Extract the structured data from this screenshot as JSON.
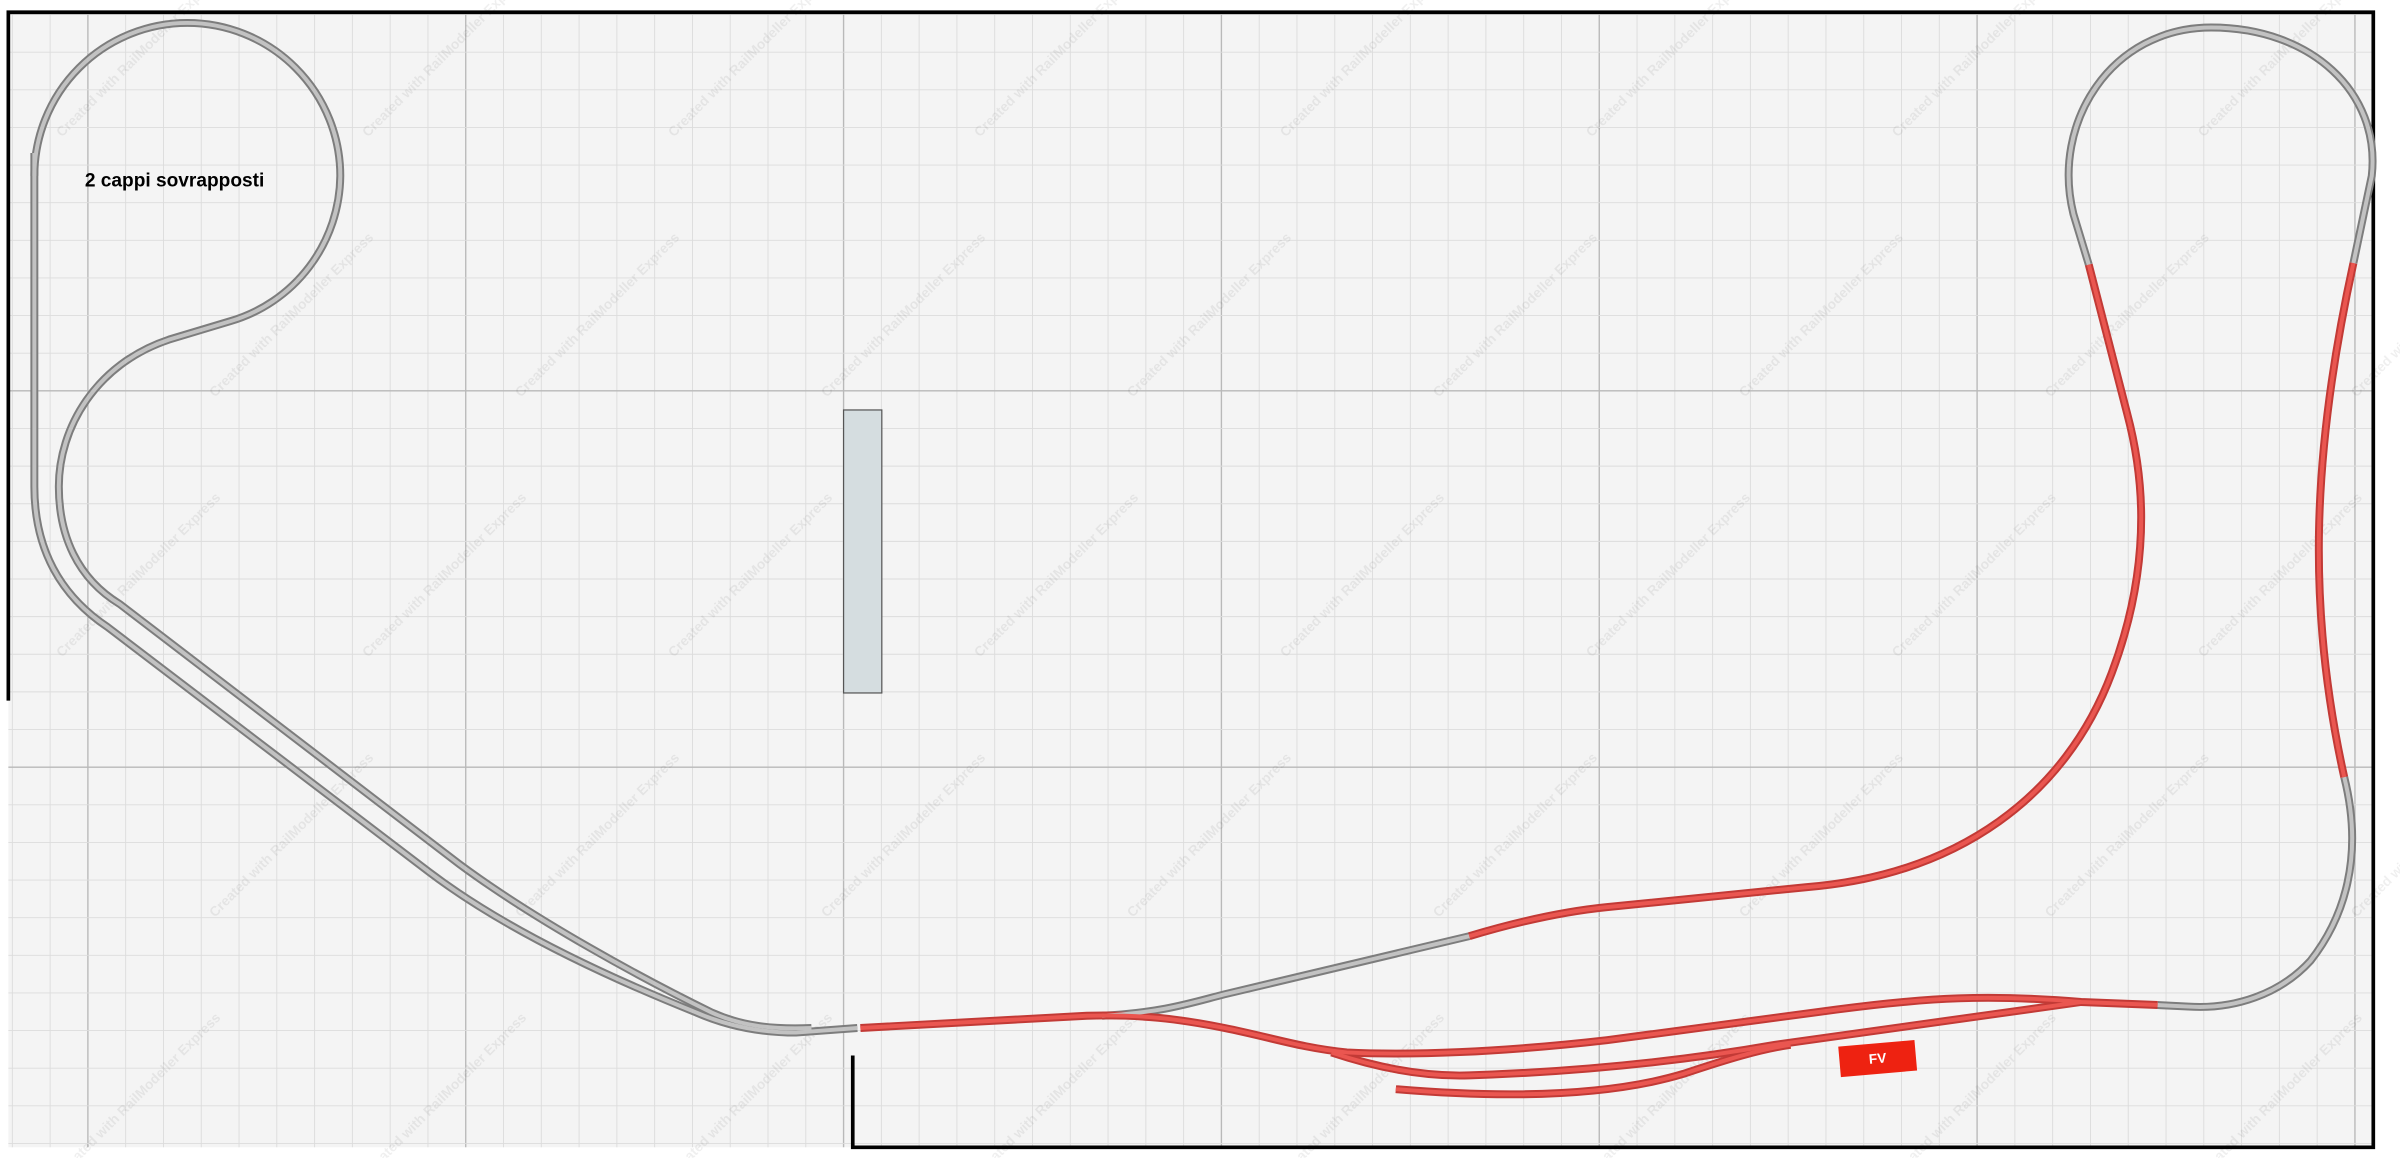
{
  "layout": {
    "annotation": "2 cappi sovrapposti",
    "fiddle_yard_label": "FV",
    "watermark": "Created with RailModeller Express"
  },
  "colors": {
    "background": "#f4f4f4",
    "track_gray": "#a8a8a8",
    "track_red": "#e04540",
    "fv_label": "#ee2211",
    "board_object": "#d5dde0"
  }
}
